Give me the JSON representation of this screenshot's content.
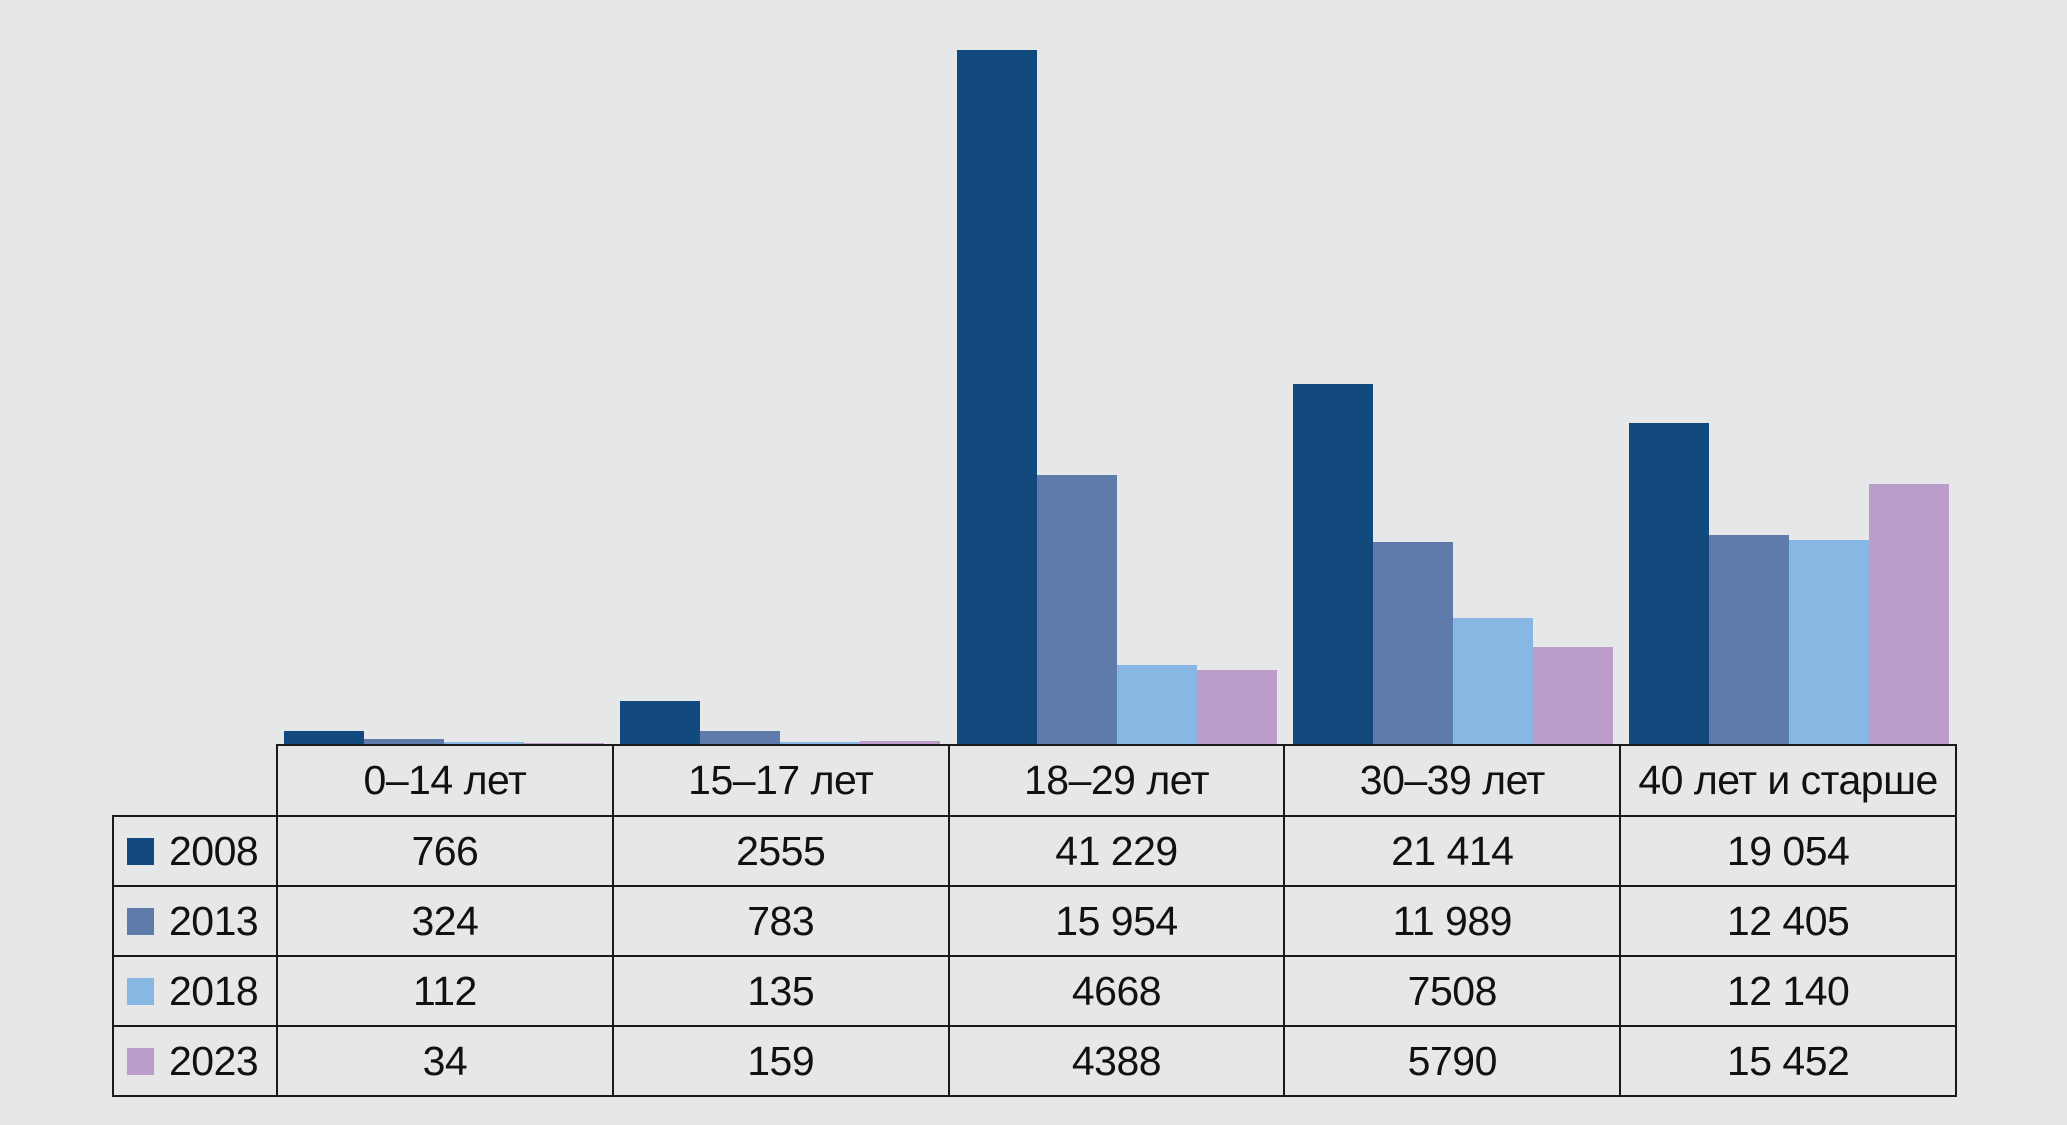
{
  "background_color": "#E6E7E8",
  "border_color": "#1a1a1a",
  "chart_data": {
    "type": "bar",
    "title": "",
    "xlabel": "",
    "ylabel": "",
    "categories": [
      "0–14 лет",
      "15–17 лет",
      "18–29 лет",
      "30–39 лет",
      "40 лет и старше"
    ],
    "series": [
      {
        "name": "2008",
        "color": "#124A7D",
        "values": [
          766,
          2555,
          41229,
          21414,
          19054
        ]
      },
      {
        "name": "2013",
        "color": "#5E7BAC",
        "values": [
          324,
          783,
          15954,
          11989,
          12405
        ]
      },
      {
        "name": "2018",
        "color": "#87B7E3",
        "values": [
          112,
          135,
          4668,
          7508,
          12140
        ]
      },
      {
        "name": "2023",
        "color": "#BC9CC9",
        "values": [
          34,
          159,
          4388,
          5790,
          15452
        ]
      }
    ],
    "ylim": [
      0,
      41229
    ],
    "grid": false,
    "axes_visible": false,
    "legend_position": "table-rows-left"
  },
  "table": {
    "col_headers": [
      "0–14 лет",
      "15–17 лет",
      "18–29 лет",
      "30–39 лет",
      "40 лет и старше"
    ],
    "rows": [
      {
        "year": "2008",
        "swatch_color": "#124A7D",
        "cells": [
          "766",
          "2555",
          "41 229",
          "21 414",
          "19 054"
        ]
      },
      {
        "year": "2013",
        "swatch_color": "#5E7BAC",
        "cells": [
          "324",
          "783",
          "15 954",
          "11 989",
          "12 405"
        ]
      },
      {
        "year": "2018",
        "swatch_color": "#87B7E3",
        "cells": [
          "112",
          "135",
          "4668",
          "7508",
          "12 140"
        ]
      },
      {
        "year": "2023",
        "swatch_color": "#BC9CC9",
        "cells": [
          "34",
          "159",
          "4388",
          "5790",
          "15 452"
        ]
      }
    ]
  }
}
